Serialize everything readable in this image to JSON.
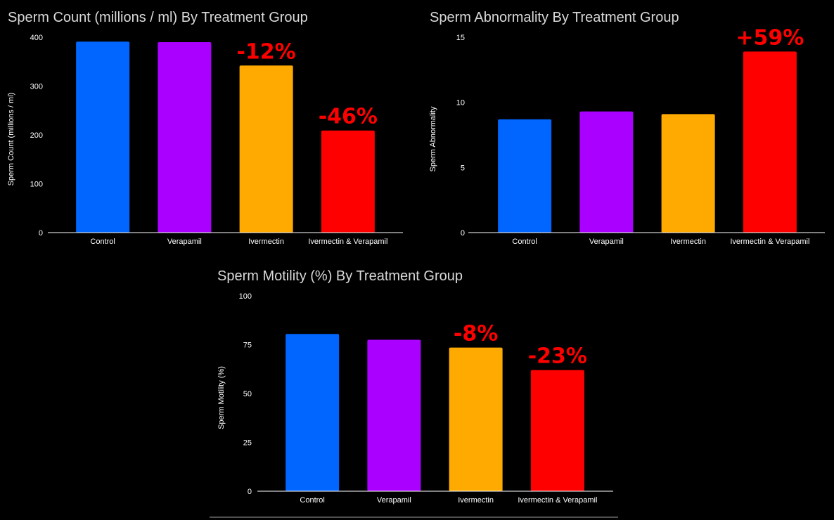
{
  "chart_data": [
    {
      "type": "bar",
      "title": "Sperm Count (millions / ml) By Treatment Group",
      "ylabel": "Sperm Count (millions / ml)",
      "xlabel": "",
      "categories": [
        "Control",
        "Verapamil",
        "Ivermectin",
        "Ivermectin & Verapamil"
      ],
      "values": [
        391,
        390,
        342,
        209
      ],
      "colors": [
        "#0066ff",
        "#aa00ff",
        "#ffaa00",
        "#ff0000"
      ],
      "ylim": [
        0,
        400
      ],
      "yticks": [
        "0",
        "100",
        "200",
        "300",
        "400"
      ],
      "annotations": [
        "",
        "",
        "-12%",
        "-46%"
      ],
      "grid": false,
      "legend": "none"
    },
    {
      "type": "bar",
      "title": "Sperm Abnormality By Treatment Group",
      "ylabel": "Sperm Abnormality",
      "xlabel": "",
      "categories": [
        "Control",
        "Verapamil",
        "Ivermectin",
        "Ivermectin & Verapamil"
      ],
      "values": [
        8.7,
        9.3,
        9.1,
        13.9
      ],
      "colors": [
        "#0066ff",
        "#aa00ff",
        "#ffaa00",
        "#ff0000"
      ],
      "ylim": [
        0,
        15
      ],
      "yticks": [
        "0",
        "5",
        "10",
        "15"
      ],
      "annotations": [
        "",
        "",
        "",
        "+59%"
      ],
      "grid": false,
      "legend": "none"
    },
    {
      "type": "bar",
      "title": "Sperm Motility (%) By Treatment Group",
      "ylabel": "Sperm Motility (%)",
      "xlabel": "",
      "categories": [
        "Control",
        "Verapamil",
        "Ivermectin",
        "Ivermectin & Verapamil"
      ],
      "values": [
        80.5,
        77.5,
        73.5,
        62
      ],
      "colors": [
        "#0066ff",
        "#aa00ff",
        "#ffaa00",
        "#ff0000"
      ],
      "ylim": [
        0,
        100
      ],
      "yticks": [
        "0",
        "25",
        "50",
        "75",
        "100"
      ],
      "annotations": [
        "",
        "",
        "-8%",
        "-23%"
      ],
      "grid": false,
      "legend": "none"
    }
  ]
}
